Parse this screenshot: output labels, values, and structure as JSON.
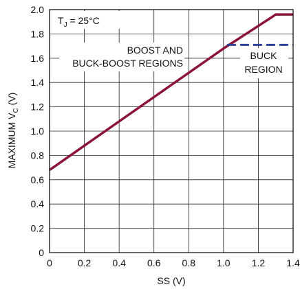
{
  "chart_data": {
    "type": "line",
    "xlabel": "SS (V)",
    "ylabel_main": "MAXIMUM V",
    "ylabel_sub": "C",
    "ylabel_unit": " (V)",
    "xlim": [
      0,
      1.4
    ],
    "ylim": [
      0,
      2.0
    ],
    "x_ticks": [
      "0",
      "0.2",
      "0.4",
      "0.6",
      "0.8",
      "1.0",
      "1.2",
      "1.4"
    ],
    "y_ticks": [
      "0",
      "0.2",
      "0.4",
      "0.6",
      "0.8",
      "1.0",
      "1.2",
      "1.4",
      "1.6",
      "1.8",
      "2.0"
    ],
    "x_tick_values": [
      0,
      0.2,
      0.4,
      0.6,
      0.8,
      1.0,
      1.2,
      1.4
    ],
    "y_tick_values": [
      0,
      0.2,
      0.4,
      0.6,
      0.8,
      1.0,
      1.2,
      1.4,
      1.6,
      1.8,
      2.0
    ],
    "grid": true,
    "condition": {
      "main": "T",
      "sub": "J",
      "rest": " = 25°C"
    },
    "annotations": {
      "boost_line1": "BOOST AND",
      "boost_line2": "BUCK-BOOST REGIONS",
      "buck_line1": "BUCK",
      "buck_line2": "REGION"
    },
    "series": [
      {
        "style": "solid",
        "color": "#8b1538",
        "x": [
          0,
          1.0,
          1.28,
          1.3,
          1.4
        ],
        "y": [
          0.68,
          1.68,
          1.94,
          1.96,
          1.96
        ]
      },
      {
        "style": "dashed",
        "color": "#2e3f97",
        "x": [
          1.02,
          1.4
        ],
        "y": [
          1.71,
          1.71
        ]
      }
    ]
  }
}
